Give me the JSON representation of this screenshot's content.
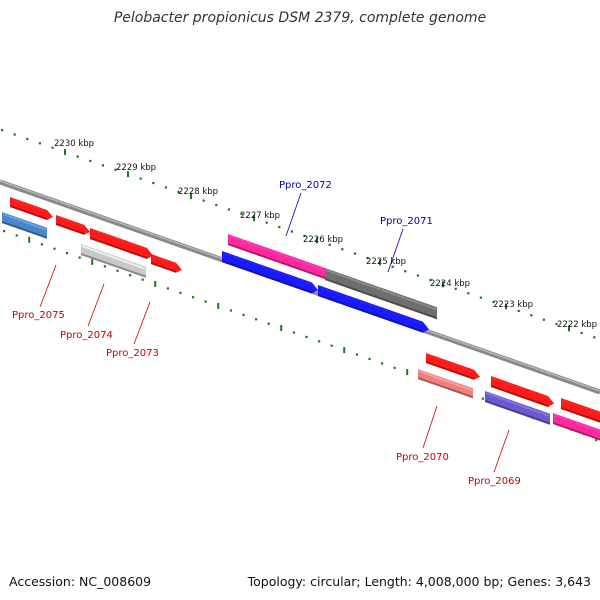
{
  "title": "Pelobacter propionicus DSM 2379, complete genome",
  "footer": {
    "accession": "Accession: NC_008609",
    "summary": "Topology: circular; Length: 4,008,000 bp; Genes: 3,643"
  },
  "colors": {
    "forward_label": "#0000aa",
    "reverse_label": "#cc0000",
    "tick": "#1a7a1a",
    "backbone": "#888888"
  },
  "ruler_labels": [
    "2230 kbp",
    "2229 kbp",
    "2228 kbp",
    "2227 kbp",
    "2226 kbp",
    "2225 kbp",
    "2224 kbp",
    "2223 kbp",
    "2222 kbp"
  ],
  "gene_labels": [
    {
      "name": "Ppro_2072",
      "strand": "forward"
    },
    {
      "name": "Ppro_2071",
      "strand": "forward"
    },
    {
      "name": "Ppro_2075",
      "strand": "reverse"
    },
    {
      "name": "Ppro_2074",
      "strand": "reverse"
    },
    {
      "name": "Ppro_2073",
      "strand": "reverse"
    },
    {
      "name": "Ppro_2070",
      "strand": "reverse"
    },
    {
      "name": "Ppro_2069",
      "strand": "reverse"
    }
  ]
}
